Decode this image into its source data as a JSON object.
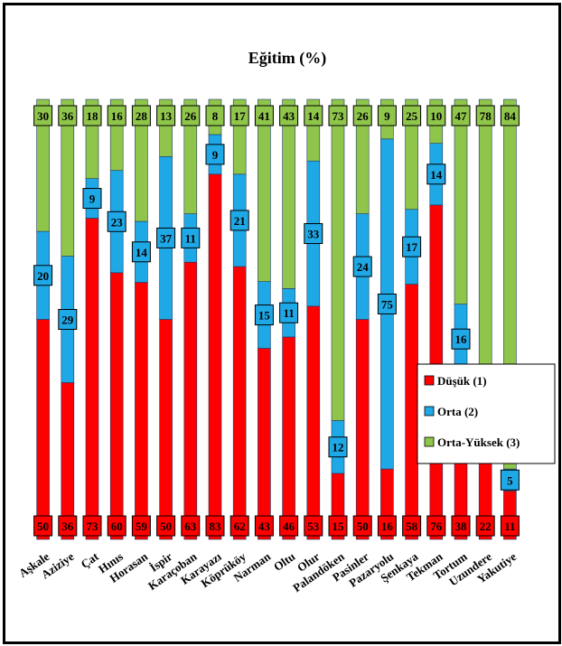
{
  "chart_data": {
    "type": "bar",
    "stacked": true,
    "normalized": true,
    "title": "Eğitim (%)",
    "xlabel": "",
    "ylabel": "",
    "ylim": [
      0,
      100
    ],
    "grid": false,
    "legend_position": "right",
    "categories": [
      "Aşkale",
      "Aziziye",
      "Çat",
      "Hınıs",
      "Horasan",
      "İspir",
      "Karaçoban",
      "Karayazı",
      "Köprüköy",
      "Narman",
      "Oltu",
      "Olur",
      "Palandöken",
      "Pasinler",
      "Pazaryolu",
      "Şenkaya",
      "Tekman",
      "Tortum",
      "Uzundere",
      "Yakutiye"
    ],
    "series": [
      {
        "name": "Düşük (1)",
        "color": "#ff0000",
        "values": [
          50,
          36,
          73,
          60,
          59,
          50,
          63,
          83,
          62,
          43,
          46,
          53,
          15,
          50,
          16,
          58,
          76,
          38,
          22,
          11
        ]
      },
      {
        "name": "Orta (2)",
        "color": "#1fa8e6",
        "values": [
          20,
          29,
          9,
          23,
          14,
          37,
          11,
          9,
          21,
          15,
          11,
          33,
          12,
          24,
          75,
          17,
          14,
          16,
          null,
          5
        ]
      },
      {
        "name": "Orta-Yüksek (3)",
        "color": "#8fc54a",
        "values": [
          30,
          36,
          18,
          16,
          28,
          13,
          26,
          8,
          17,
          41,
          43,
          14,
          73,
          26,
          9,
          25,
          10,
          47,
          78,
          84
        ]
      }
    ]
  }
}
